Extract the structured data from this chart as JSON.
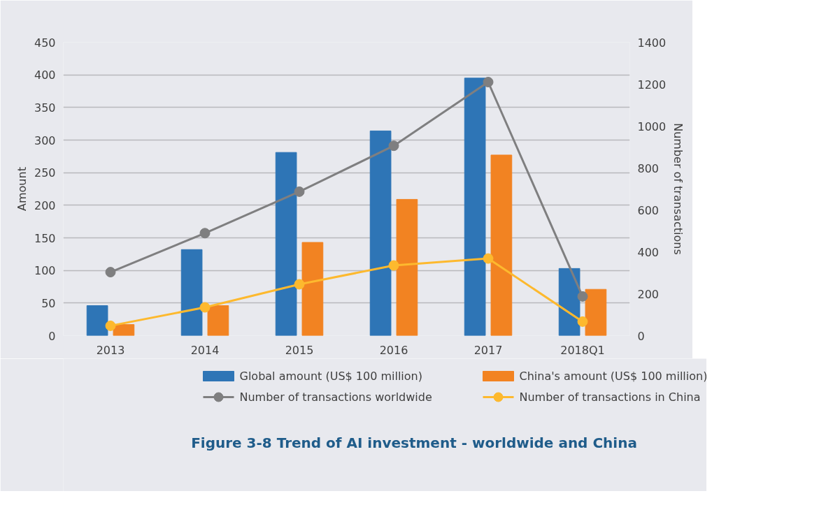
{
  "chart_data": {
    "type": "bar",
    "title": "Figure 3-8  Trend of AI investment - worldwide and China",
    "ylabel": "Amount",
    "y2label": "Number of transactions",
    "categories": [
      "2013",
      "2014",
      "2015",
      "2016",
      "2017",
      "2018Q1"
    ],
    "series": [
      {
        "name": "Global amount (US$ 100 million)",
        "type": "bar",
        "color": "#2e75b6",
        "values": [
          46,
          132,
          281,
          314,
          395,
          103
        ]
      },
      {
        "name": "China's amount (US$ 100 million)",
        "type": "bar",
        "color": "#f28322",
        "values": [
          17,
          46,
          143,
          209,
          277,
          71
        ]
      },
      {
        "name": "Number of transactions worldwide",
        "type": "line",
        "axis": "y2",
        "marker": "circle",
        "color": "#7f7f80",
        "values": [
          303,
          489,
          687,
          906,
          1210,
          187
        ]
      },
      {
        "name": "Number of transactions in China",
        "type": "line",
        "axis": "y2",
        "marker": "circle",
        "color": "#fdb92e",
        "values": [
          47,
          135,
          245,
          335,
          368,
          67
        ]
      }
    ],
    "ylim": [
      0,
      450
    ],
    "yticks": [
      0,
      50,
      100,
      150,
      200,
      250,
      300,
      350,
      400,
      450
    ],
    "y2lim": [
      0,
      1400
    ],
    "y2ticks": [
      0,
      200,
      400,
      600,
      800,
      1000,
      1200,
      1400
    ],
    "grid": "y",
    "legend": "bottom"
  }
}
